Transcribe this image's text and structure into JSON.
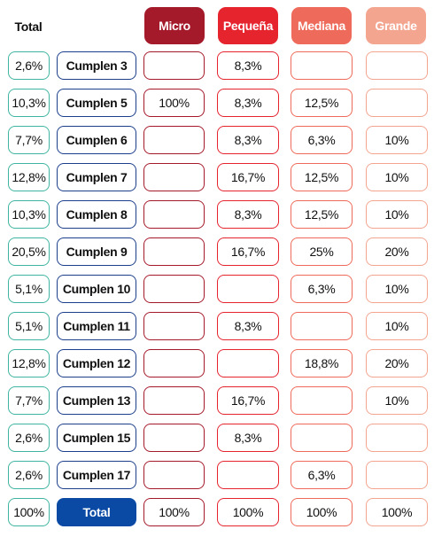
{
  "header": {
    "total": "Total",
    "micro": "Micro",
    "pequena": "Pequeña",
    "mediana": "Mediana",
    "grande": "Grande"
  },
  "rows": [
    {
      "total": "2,6%",
      "name": "Cumplen 3",
      "micro": "",
      "pequena": "8,3%",
      "mediana": "",
      "grande": ""
    },
    {
      "total": "10,3%",
      "name": "Cumplen 5",
      "micro": "100%",
      "pequena": "8,3%",
      "mediana": "12,5%",
      "grande": ""
    },
    {
      "total": "7,7%",
      "name": "Cumplen 6",
      "micro": "",
      "pequena": "8,3%",
      "mediana": "6,3%",
      "grande": "10%"
    },
    {
      "total": "12,8%",
      "name": "Cumplen 7",
      "micro": "",
      "pequena": "16,7%",
      "mediana": "12,5%",
      "grande": "10%"
    },
    {
      "total": "10,3%",
      "name": "Cumplen 8",
      "micro": "",
      "pequena": "8,3%",
      "mediana": "12,5%",
      "grande": "10%"
    },
    {
      "total": "20,5%",
      "name": "Cumplen 9",
      "micro": "",
      "pequena": "16,7%",
      "mediana": "25%",
      "grande": "20%"
    },
    {
      "total": "5,1%",
      "name": "Cumplen 10",
      "micro": "",
      "pequena": "",
      "mediana": "6,3%",
      "grande": "10%"
    },
    {
      "total": "5,1%",
      "name": "Cumplen 11",
      "micro": "",
      "pequena": "8,3%",
      "mediana": "",
      "grande": "10%"
    },
    {
      "total": "12,8%",
      "name": "Cumplen 12",
      "micro": "",
      "pequena": "",
      "mediana": "18,8%",
      "grande": "20%"
    },
    {
      "total": "7,7%",
      "name": "Cumplen 13",
      "micro": "",
      "pequena": "16,7%",
      "mediana": "",
      "grande": "10%"
    },
    {
      "total": "2,6%",
      "name": "Cumplen 15",
      "micro": "",
      "pequena": "8,3%",
      "mediana": "",
      "grande": ""
    },
    {
      "total": "2,6%",
      "name": "Cumplen 17",
      "micro": "",
      "pequena": "",
      "mediana": "6,3%",
      "grande": ""
    }
  ],
  "totals": {
    "total": "100%",
    "name": "Total",
    "micro": "100%",
    "pequena": "100%",
    "mediana": "100%",
    "grande": "100%"
  },
  "colors": {
    "micro": "#a51a2b",
    "pequena": "#e5242e",
    "mediana": "#ee6a5a",
    "grande": "#f4a590",
    "total_border": "#3fb5a1",
    "name_border": "#1c3f8c",
    "total_fill": "#0a4aa5"
  }
}
